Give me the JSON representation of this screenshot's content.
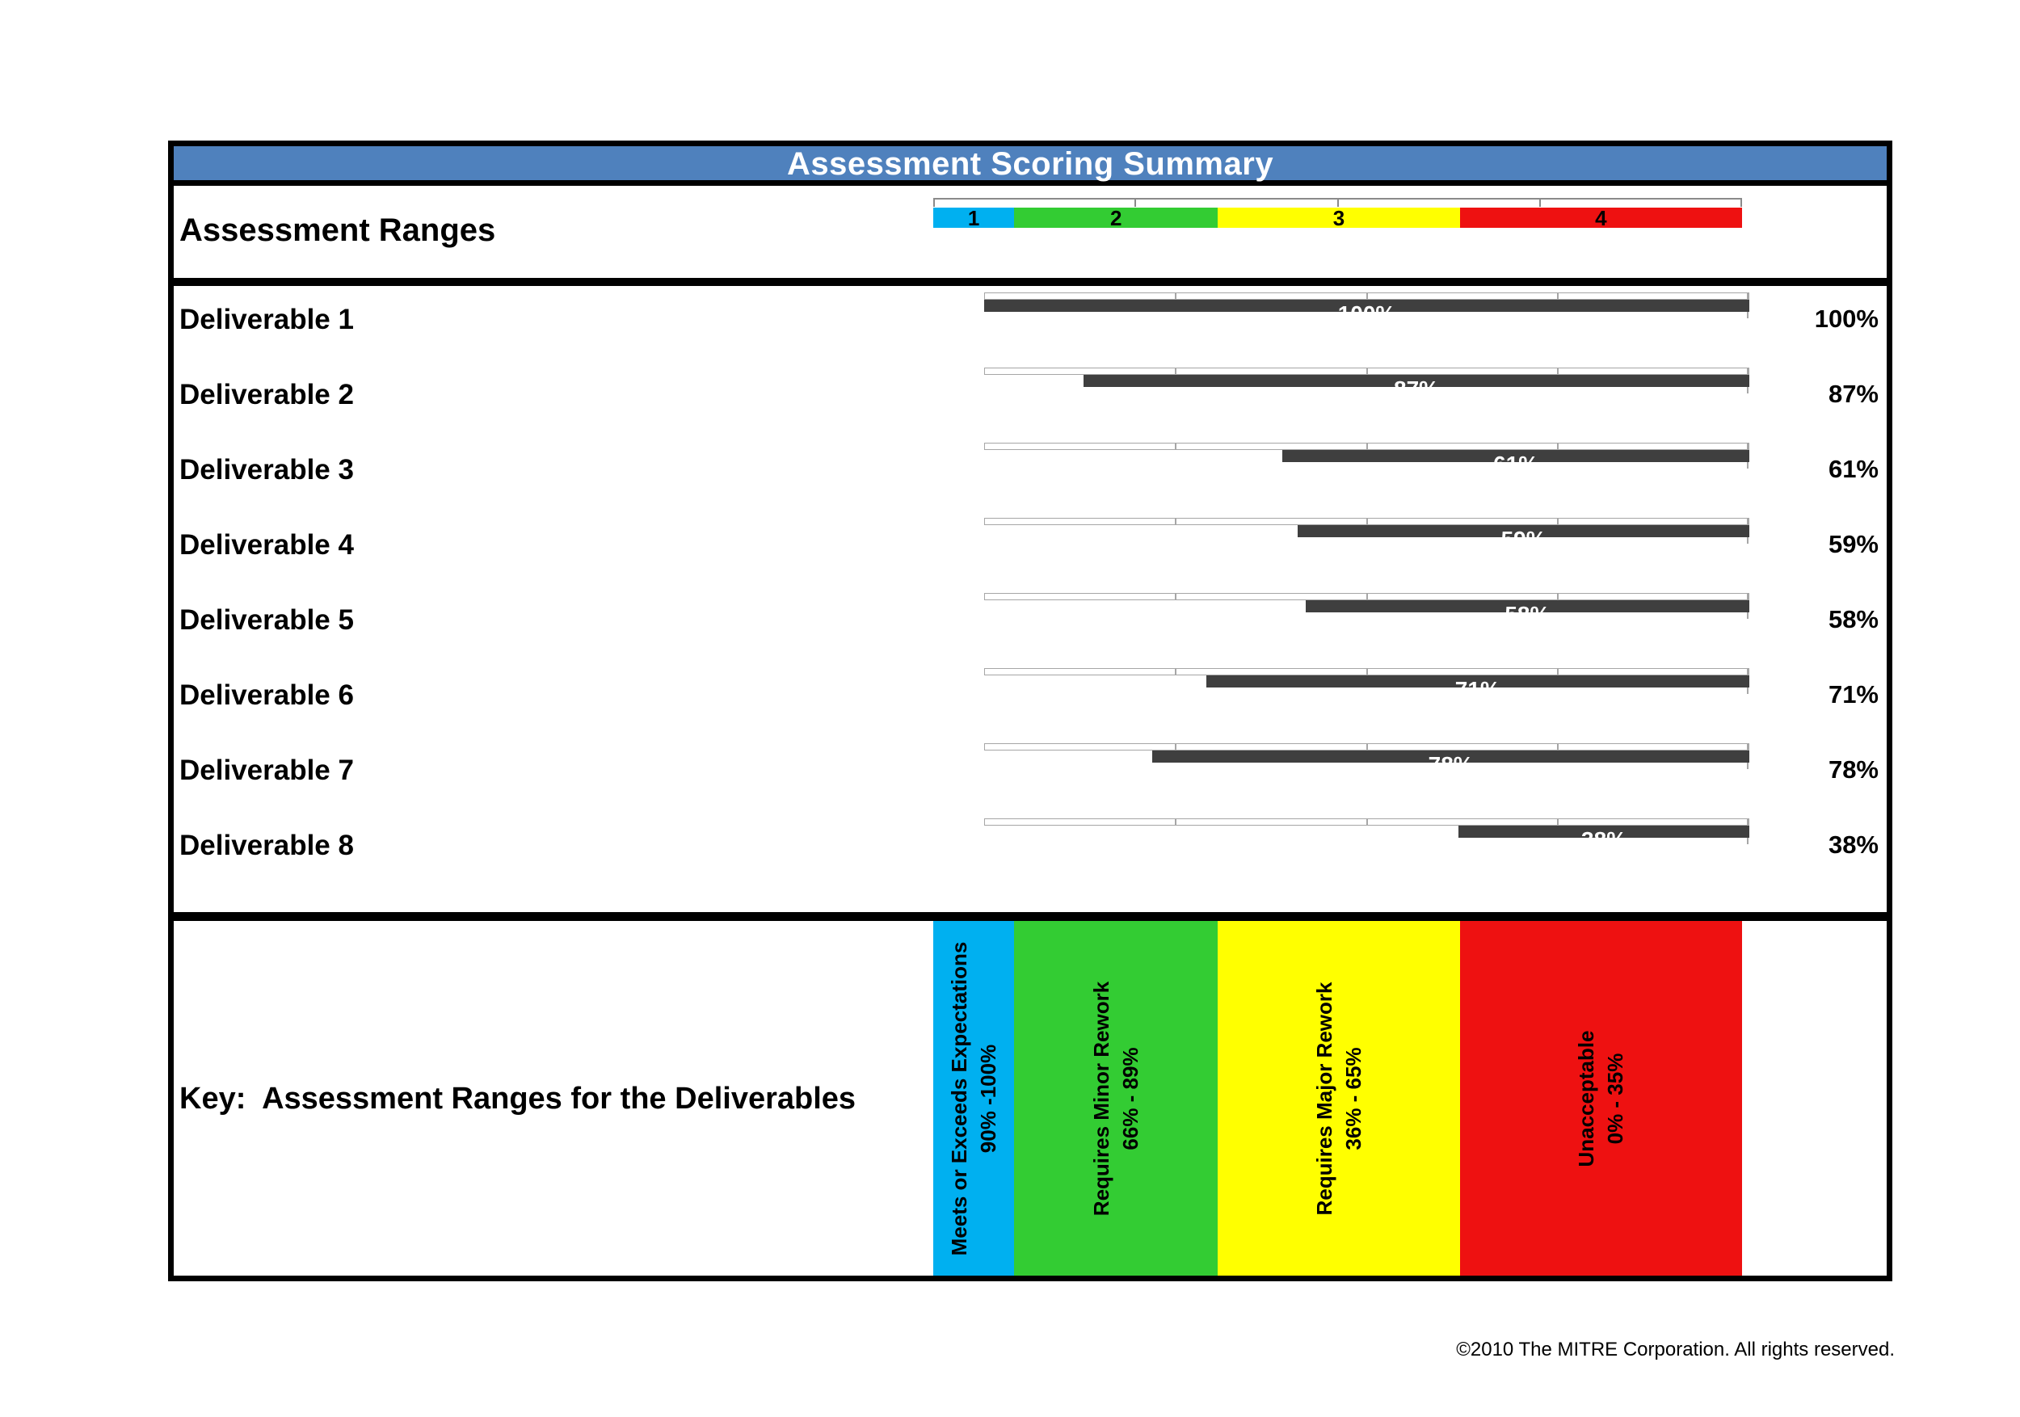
{
  "title": "Assessment Scoring Summary",
  "colors": {
    "title_blue": "#4f81bd",
    "bar_dark": "#3f3f3f",
    "range_cyan": "#00b0f0",
    "range_green": "#33cc33",
    "range_yellow": "#ffff00",
    "range_red": "#ee1111"
  },
  "ranges_row_label": "Assessment Ranges",
  "ranges": [
    {
      "num": "1",
      "name": "Meets or Exceeds Expectations",
      "range": "90% -100%",
      "color": "#00b0f0",
      "width_pct": 10.0
    },
    {
      "num": "2",
      "name": "Requires Minor Rework",
      "range": "66% - 89%",
      "color": "#33cc33",
      "width_pct": 25.2
    },
    {
      "num": "3",
      "name": "Requires Major Rework",
      "range": "36% - 65%",
      "color": "#ffff00",
      "width_pct": 29.9
    },
    {
      "num": "4",
      "name": "Unacceptable",
      "range": "0% - 35%",
      "color": "#ee1111",
      "width_pct": 34.9
    }
  ],
  "deliverables": [
    {
      "name": "Deliverable 1",
      "score_pct": 100,
      "score_label": "100%"
    },
    {
      "name": "Deliverable 2",
      "score_pct": 87,
      "score_label": "87%"
    },
    {
      "name": "Deliverable 3",
      "score_pct": 61,
      "score_label": "61%"
    },
    {
      "name": "Deliverable 4",
      "score_pct": 59,
      "score_label": "59%"
    },
    {
      "name": "Deliverable 5",
      "score_pct": 58,
      "score_label": "58%"
    },
    {
      "name": "Deliverable 6",
      "score_pct": 71,
      "score_label": "71%"
    },
    {
      "name": "Deliverable 7",
      "score_pct": 78,
      "score_label": "78%"
    },
    {
      "name": "Deliverable 8",
      "score_pct": 38,
      "score_label": "38%"
    }
  ],
  "key_label": "Key:  Assessment Ranges for the Deliverables",
  "footer": {
    "copyright": "©2010 The MITRE Corporation. All rights reserved."
  },
  "chart_data": {
    "type": "bar",
    "orientation": "horizontal",
    "title": "Assessment Scoring Summary",
    "categories": [
      "Deliverable 1",
      "Deliverable 2",
      "Deliverable 3",
      "Deliverable 4",
      "Deliverable 5",
      "Deliverable 6",
      "Deliverable 7",
      "Deliverable 8"
    ],
    "values": [
      100,
      87,
      61,
      59,
      58,
      71,
      78,
      38
    ],
    "unit": "%",
    "value_axis": {
      "min": 0,
      "max": 100,
      "direction": "100% at left, 0% at right; bars anchored at right edge",
      "ticks_every_pct": 25
    },
    "bar_color": "#3f3f3f",
    "data_labels": "shown in white inside bar and in black at row right",
    "legend_position": "bottom key band",
    "assessment_scale": [
      {
        "label": "1",
        "meaning": "Meets or Exceeds Expectations",
        "range": "90% -100%",
        "color": "#00b0f0"
      },
      {
        "label": "2",
        "meaning": "Requires Minor Rework",
        "range": "66% - 89%",
        "color": "#33cc33"
      },
      {
        "label": "3",
        "meaning": "Requires Major Rework",
        "range": "36% - 65%",
        "color": "#ffff00"
      },
      {
        "label": "4",
        "meaning": "Unacceptable",
        "range": "0% - 35%",
        "color": "#ee1111"
      }
    ]
  }
}
